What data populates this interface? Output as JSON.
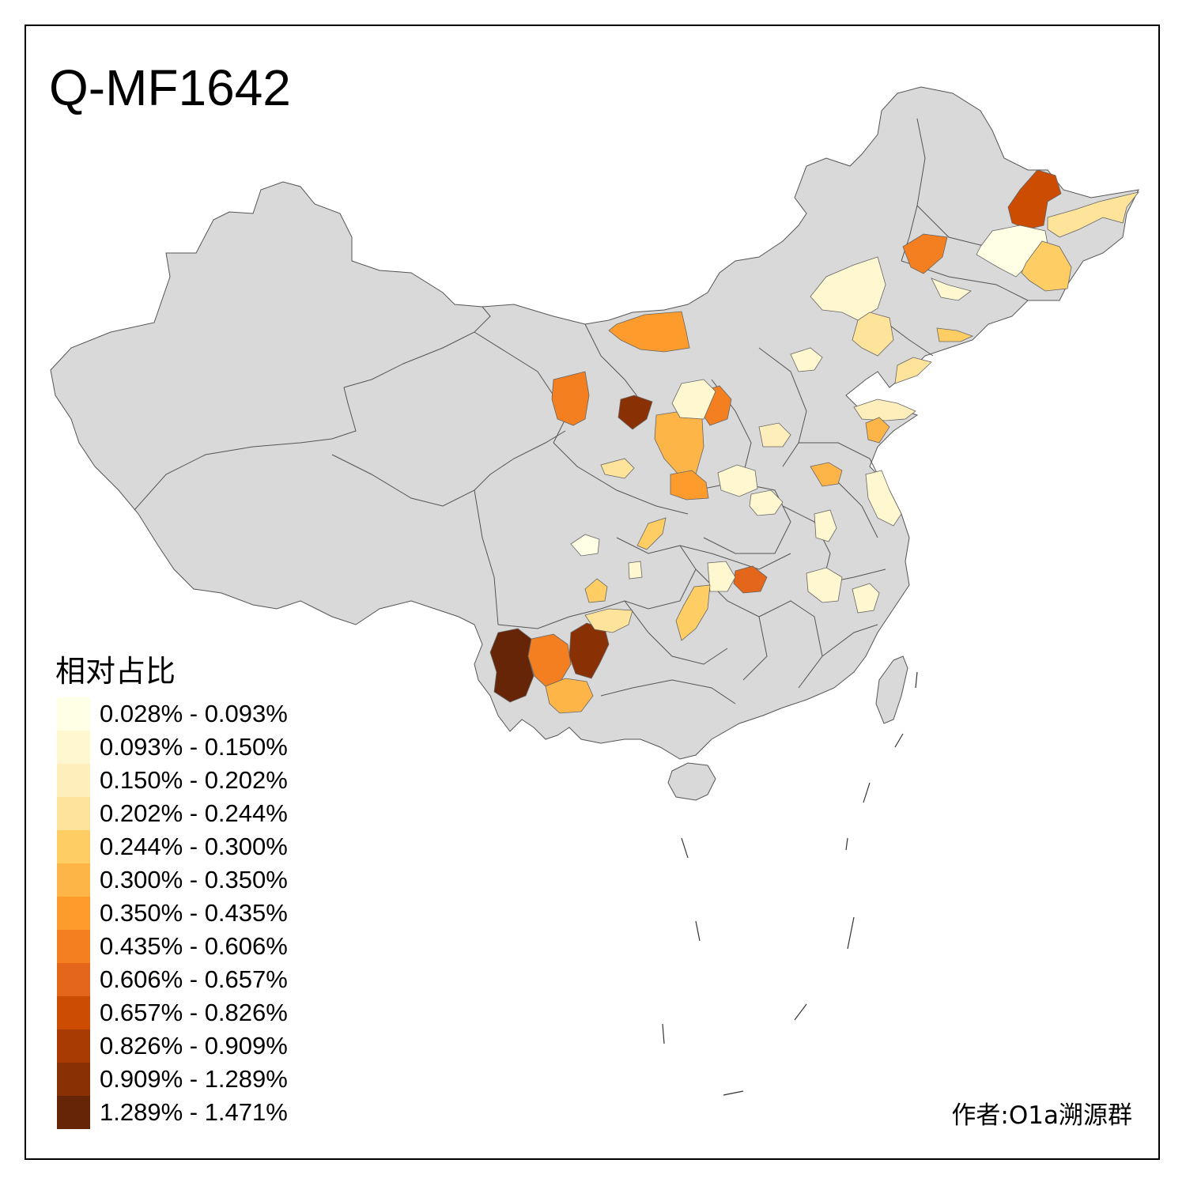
{
  "title": "Q-MF1642",
  "legend": {
    "title": "相对占比",
    "bins": [
      {
        "label": "0.028% - 0.093%",
        "color": "#ffffe5"
      },
      {
        "label": "0.093% - 0.150%",
        "color": "#fff7cf"
      },
      {
        "label": "0.150% - 0.202%",
        "color": "#feeebb"
      },
      {
        "label": "0.202% - 0.244%",
        "color": "#fee39a"
      },
      {
        "label": "0.244% - 0.300%",
        "color": "#fece65"
      },
      {
        "label": "0.300% - 0.350%",
        "color": "#feb548"
      },
      {
        "label": "0.350% - 0.435%",
        "color": "#fd9b2c"
      },
      {
        "label": "0.435% - 0.606%",
        "color": "#f37f20"
      },
      {
        "label": "0.606% - 0.657%",
        "color": "#e3661a"
      },
      {
        "label": "0.657% - 0.826%",
        "color": "#cc4c02"
      },
      {
        "label": "0.826% - 0.909%",
        "color": "#a83a04"
      },
      {
        "label": "0.909% - 1.289%",
        "color": "#8a3005"
      },
      {
        "label": "1.289% - 1.471%",
        "color": "#662506"
      }
    ]
  },
  "author": "作者:O1a溯源群",
  "colors": {
    "base_land": "#d9d9d9",
    "border": "#555555",
    "frame": "#000000"
  },
  "regions": [
    {
      "name": "heilongjiang-northeast",
      "bin": 9
    },
    {
      "name": "heilongjiang-east",
      "bin": 3
    },
    {
      "name": "heilongjiang-harbin",
      "bin": 0
    },
    {
      "name": "heilongjiang-mudanjiang",
      "bin": 4
    },
    {
      "name": "heilongjiang-qiqihar",
      "bin": 7
    },
    {
      "name": "jilin-west",
      "bin": 1
    },
    {
      "name": "jilin-changchun",
      "bin": 1
    },
    {
      "name": "liaoning-shenyang",
      "bin": 3
    },
    {
      "name": "liaoning-dandong",
      "bin": 4
    },
    {
      "name": "liaoning-dalian",
      "bin": 3
    },
    {
      "name": "inner-mongolia-central",
      "bin": 6
    },
    {
      "name": "ningxia-north",
      "bin": 7
    },
    {
      "name": "inner-mongolia-ordos",
      "bin": 11
    },
    {
      "name": "shanxi-shaanxi-north",
      "bin": 5
    },
    {
      "name": "shaanxi-central",
      "bin": 6
    },
    {
      "name": "shanxi-north",
      "bin": 7
    },
    {
      "name": "hebei-north",
      "bin": 1
    },
    {
      "name": "beijing-tianjin",
      "bin": 1
    },
    {
      "name": "shandong-east",
      "bin": 2
    },
    {
      "name": "shandong-qingdao",
      "bin": 5
    },
    {
      "name": "gansu-south",
      "bin": 3
    },
    {
      "name": "sichuan-north",
      "bin": 4
    },
    {
      "name": "sichuan-west",
      "bin": 0
    },
    {
      "name": "chongqing-area",
      "bin": 1
    },
    {
      "name": "hubei-wuhan",
      "bin": 8
    },
    {
      "name": "hunan-north",
      "bin": 1
    },
    {
      "name": "hunan-west",
      "bin": 4
    },
    {
      "name": "guizhou-west",
      "bin": 4
    },
    {
      "name": "yunnan-west",
      "bin": 12
    },
    {
      "name": "yunnan-central",
      "bin": 7
    },
    {
      "name": "yunnan-south",
      "bin": 5
    },
    {
      "name": "yunnan-east",
      "bin": 11
    },
    {
      "name": "yunnan-dali",
      "bin": 3
    },
    {
      "name": "henan-north",
      "bin": 1
    },
    {
      "name": "henan-central",
      "bin": 1
    },
    {
      "name": "henan-south",
      "bin": 1
    },
    {
      "name": "jiangsu-north",
      "bin": 5
    },
    {
      "name": "jiangsu-south",
      "bin": 1
    },
    {
      "name": "anhui-area",
      "bin": 1
    },
    {
      "name": "zhejiang-area",
      "bin": 1
    },
    {
      "name": "jiangxi-north",
      "bin": 2
    }
  ]
}
